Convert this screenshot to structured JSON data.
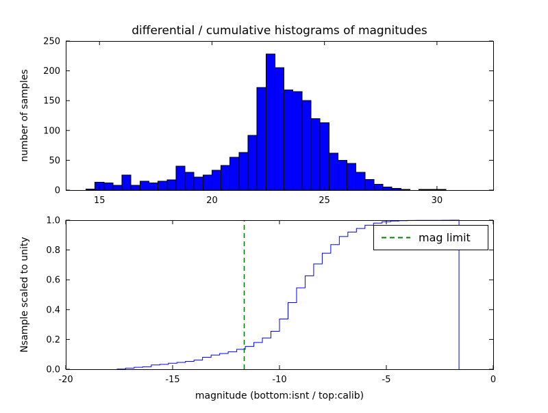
{
  "figure": {
    "background": "#ffffff",
    "frame_color": "#000000"
  },
  "chart_data": [
    {
      "type": "bar",
      "subplot": "top",
      "title": "differential / cumulative histograms of magnitudes",
      "ylabel": "number of samples",
      "xlim": [
        13.5,
        32.5
      ],
      "ylim": [
        0,
        250
      ],
      "xticks": [
        15,
        20,
        25,
        30
      ],
      "xtick_labels": [
        "15",
        "20",
        "25",
        "30"
      ],
      "yticks": [
        0,
        50,
        100,
        150,
        200,
        250
      ],
      "ytick_labels": [
        "0",
        "50",
        "100",
        "150",
        "200",
        "250"
      ],
      "grid": false,
      "bar_color": "#0000ff",
      "bar_edge_color": "#000000",
      "bins": {
        "start": 14.4,
        "width": 0.4
      },
      "counts": [
        2,
        13,
        12,
        8,
        25,
        8,
        15,
        12,
        15,
        17,
        40,
        30,
        22,
        25,
        33,
        41,
        55,
        63,
        92,
        172,
        228,
        205,
        168,
        165,
        150,
        120,
        113,
        62,
        50,
        45,
        30,
        18,
        10,
        5,
        3,
        1,
        0,
        1,
        1,
        1
      ]
    },
    {
      "type": "line",
      "subplot": "bottom",
      "style": "step",
      "xlabel": "magnitude (bottom:isnt / top:calib)",
      "ylabel": "Nsample scaled to unity",
      "xlim": [
        -20,
        0
      ],
      "ylim": [
        0.0,
        1.0
      ],
      "xticks": [
        -20,
        -15,
        -10,
        -5,
        0
      ],
      "xtick_labels": [
        "-20",
        "-15",
        "-10",
        "-5",
        "0"
      ],
      "yticks": [
        0.0,
        0.2,
        0.4,
        0.6,
        0.8,
        1.0
      ],
      "ytick_labels": [
        "0.0",
        "0.2",
        "0.4",
        "0.6",
        "0.8",
        "1.0"
      ],
      "grid": false,
      "line_color": "#0000ff",
      "steps": {
        "x_start": -17.6,
        "bin_width": 0.4,
        "fractions": [
          0.001,
          0.0072,
          0.013,
          0.0169,
          0.0289,
          0.0328,
          0.04,
          0.0458,
          0.053,
          0.0612,
          0.0804,
          0.0949,
          0.1055,
          0.1175,
          0.1334,
          0.1532,
          0.1797,
          0.21,
          0.2543,
          0.3372,
          0.447,
          0.5458,
          0.6267,
          0.7062,
          0.7784,
          0.8362,
          0.8907,
          0.9205,
          0.9446,
          0.9663,
          0.9807,
          0.9894,
          0.9942,
          0.9966,
          0.9981,
          0.9986,
          0.9986,
          0.999,
          0.9995,
          1.0
        ]
      },
      "mag_limit_line": {
        "x": -11.65,
        "color": "#008000",
        "dash": true
      },
      "legend": {
        "position": "upper right",
        "entries": [
          {
            "label": "mag limit",
            "color": "#008000",
            "dash": true
          }
        ]
      }
    }
  ]
}
